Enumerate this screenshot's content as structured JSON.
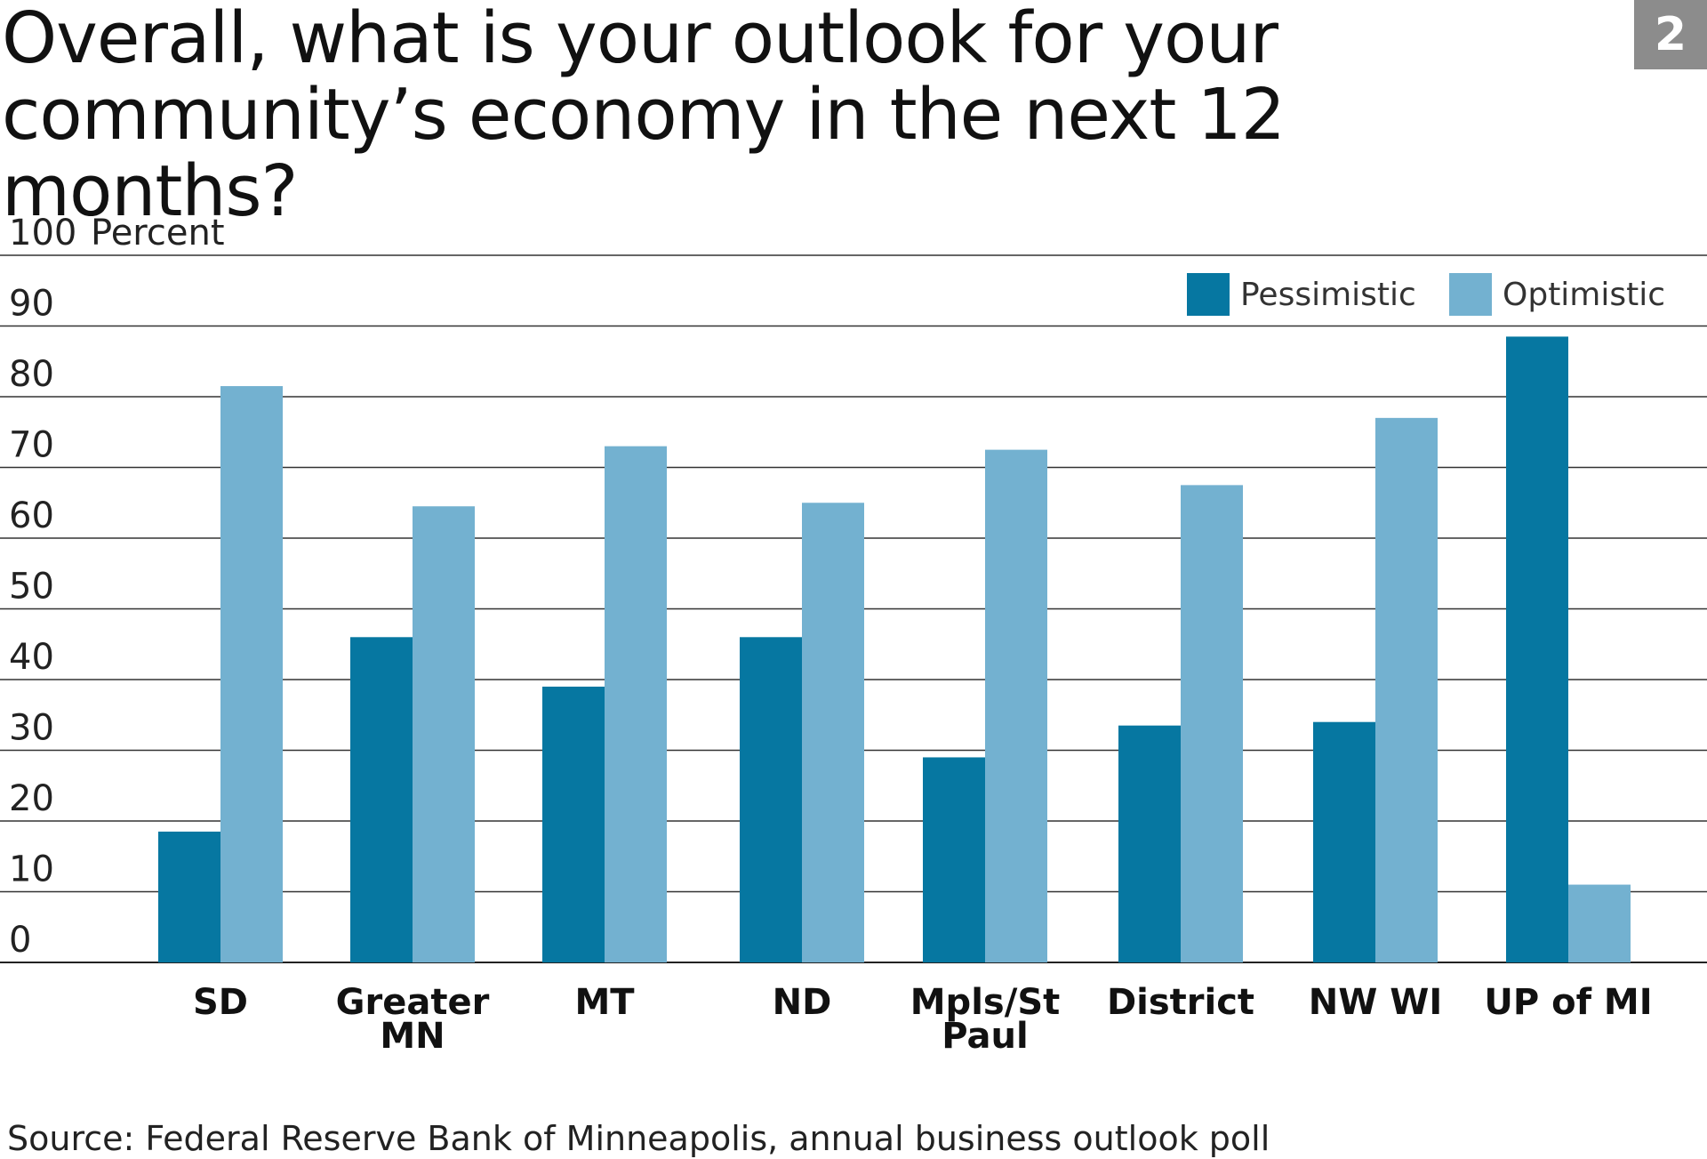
{
  "title": "Overall, what is your outlook for your community’s economy in the next 12 months?",
  "badge": "2",
  "source": "Source: Federal Reserve Bank of Minneapolis, annual business outlook poll",
  "colors": {
    "pessimistic": "#0677a1",
    "optimistic": "#73b1d0",
    "grid": "#333333"
  },
  "chart_data": {
    "type": "bar",
    "title": "Overall, what is your outlook for your community’s economy in the next 12 months?",
    "ylabel": "Percent",
    "xlabel": "",
    "ylim": [
      0,
      100
    ],
    "yticks": [
      0,
      10,
      20,
      30,
      40,
      50,
      60,
      70,
      80,
      90,
      100
    ],
    "grid": true,
    "legend_position": "top-right",
    "categories": [
      "SD",
      "Greater MN",
      "MT",
      "ND",
      "Mpls/St Paul",
      "District",
      "NW WI",
      "UP of MI"
    ],
    "series": [
      {
        "name": "Pessimistic",
        "values": [
          18.5,
          46,
          39,
          46,
          29,
          33.5,
          34,
          88.5
        ]
      },
      {
        "name": "Optimistic",
        "values": [
          81.5,
          64.5,
          73,
          65,
          72.5,
          67.5,
          77,
          11
        ]
      }
    ]
  }
}
